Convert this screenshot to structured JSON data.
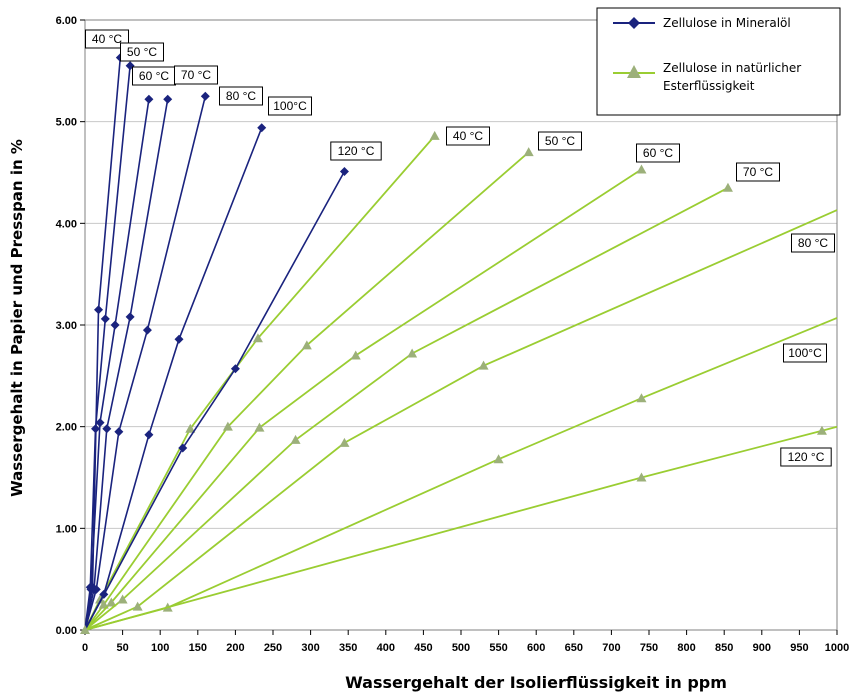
{
  "chart_data": {
    "type": "line",
    "xlabel": "Wassergehalt der Isolierflüssigkeit in ppm",
    "ylabel": "Wassergehalt in Papier und Presspan in %",
    "xlim": [
      0,
      1000
    ],
    "ylim": [
      0,
      6
    ],
    "x_ticks": [
      "0",
      "50",
      "100",
      "150",
      "200",
      "250",
      "300",
      "350",
      "400",
      "450",
      "500",
      "550",
      "600",
      "650",
      "700",
      "750",
      "800",
      "850",
      "900",
      "950",
      "1000"
    ],
    "y_ticks": [
      "0.00",
      "1.00",
      "2.00",
      "3.00",
      "4.00",
      "5.00",
      "6.00"
    ],
    "grid": "horizontal",
    "legend_position": "top-right",
    "colors": {
      "mineral": "#1a237e",
      "ester": "#9acd32",
      "ester_marker": "#9cb07a"
    },
    "series": [
      {
        "name": "Zellulose in Mineralöl",
        "marker": "diamond",
        "curves": [
          {
            "label": "40 °C",
            "points": [
              [
                0,
                0
              ],
              [
                10,
                0.42
              ],
              [
                18,
                3.15
              ],
              [
                47,
                5.63
              ]
            ]
          },
          {
            "label": "50 °C",
            "points": [
              [
                0,
                0
              ],
              [
                7,
                0.42
              ],
              [
                14,
                1.98
              ],
              [
                27,
                3.06
              ],
              [
                60,
                5.55
              ]
            ]
          },
          {
            "label": "60 °C",
            "points": [
              [
                0,
                0
              ],
              [
                8,
                0.4
              ],
              [
                20,
                2.04
              ],
              [
                40,
                3.0
              ],
              [
                85,
                5.22
              ]
            ]
          },
          {
            "label": "70 °C",
            "points": [
              [
                0,
                0
              ],
              [
                12,
                0.4
              ],
              [
                29,
                1.98
              ],
              [
                60,
                3.08
              ],
              [
                110,
                5.22
              ]
            ]
          },
          {
            "label": "80 °C",
            "points": [
              [
                0,
                0
              ],
              [
                15,
                0.4
              ],
              [
                45,
                1.95
              ],
              [
                83,
                2.95
              ],
              [
                160,
                5.25
              ]
            ]
          },
          {
            "label": "100°C",
            "points": [
              [
                0,
                0
              ],
              [
                25,
                0.35
              ],
              [
                85,
                1.92
              ],
              [
                125,
                2.86
              ],
              [
                235,
                4.94
              ]
            ]
          },
          {
            "label": "120 °C",
            "points": [
              [
                0,
                0
              ],
              [
                130,
                1.79
              ],
              [
                200,
                2.57
              ],
              [
                345,
                4.51
              ]
            ]
          }
        ]
      },
      {
        "name": "Zellulose in natürlicher Esterflüssigkeit",
        "marker": "triangle",
        "curves": [
          {
            "label": "40 °C",
            "points": [
              [
                0,
                0
              ],
              [
                20,
                0.3
              ],
              [
                140,
                1.98
              ],
              [
                230,
                2.87
              ],
              [
                465,
                4.86
              ]
            ]
          },
          {
            "label": "50 °C",
            "points": [
              [
                0,
                0
              ],
              [
                25,
                0.25
              ],
              [
                190,
                2.0
              ],
              [
                295,
                2.8
              ],
              [
                590,
                4.7
              ]
            ]
          },
          {
            "label": "60 °C",
            "points": [
              [
                0,
                0
              ],
              [
                35,
                0.27
              ],
              [
                232,
                1.99
              ],
              [
                360,
                2.7
              ],
              [
                740,
                4.53
              ]
            ]
          },
          {
            "label": "70 °C",
            "points": [
              [
                0,
                0
              ],
              [
                50,
                0.3
              ],
              [
                280,
                1.87
              ],
              [
                435,
                2.72
              ],
              [
                855,
                4.35
              ]
            ]
          },
          {
            "label": "80 °C",
            "points": [
              [
                0,
                0
              ],
              [
                70,
                0.23
              ],
              [
                345,
                1.84
              ],
              [
                530,
                2.6
              ],
              [
                1000,
                4.13
              ]
            ]
          },
          {
            "label": "100°C",
            "points": [
              [
                0,
                0
              ],
              [
                110,
                0.22
              ],
              [
                550,
                1.68
              ],
              [
                740,
                2.28
              ],
              [
                1000,
                3.07
              ]
            ]
          },
          {
            "label": "120 °C",
            "points": [
              [
                0,
                0
              ],
              [
                740,
                1.5
              ],
              [
                980,
                1.96
              ],
              [
                1000,
                2.0
              ]
            ]
          }
        ]
      }
    ]
  }
}
